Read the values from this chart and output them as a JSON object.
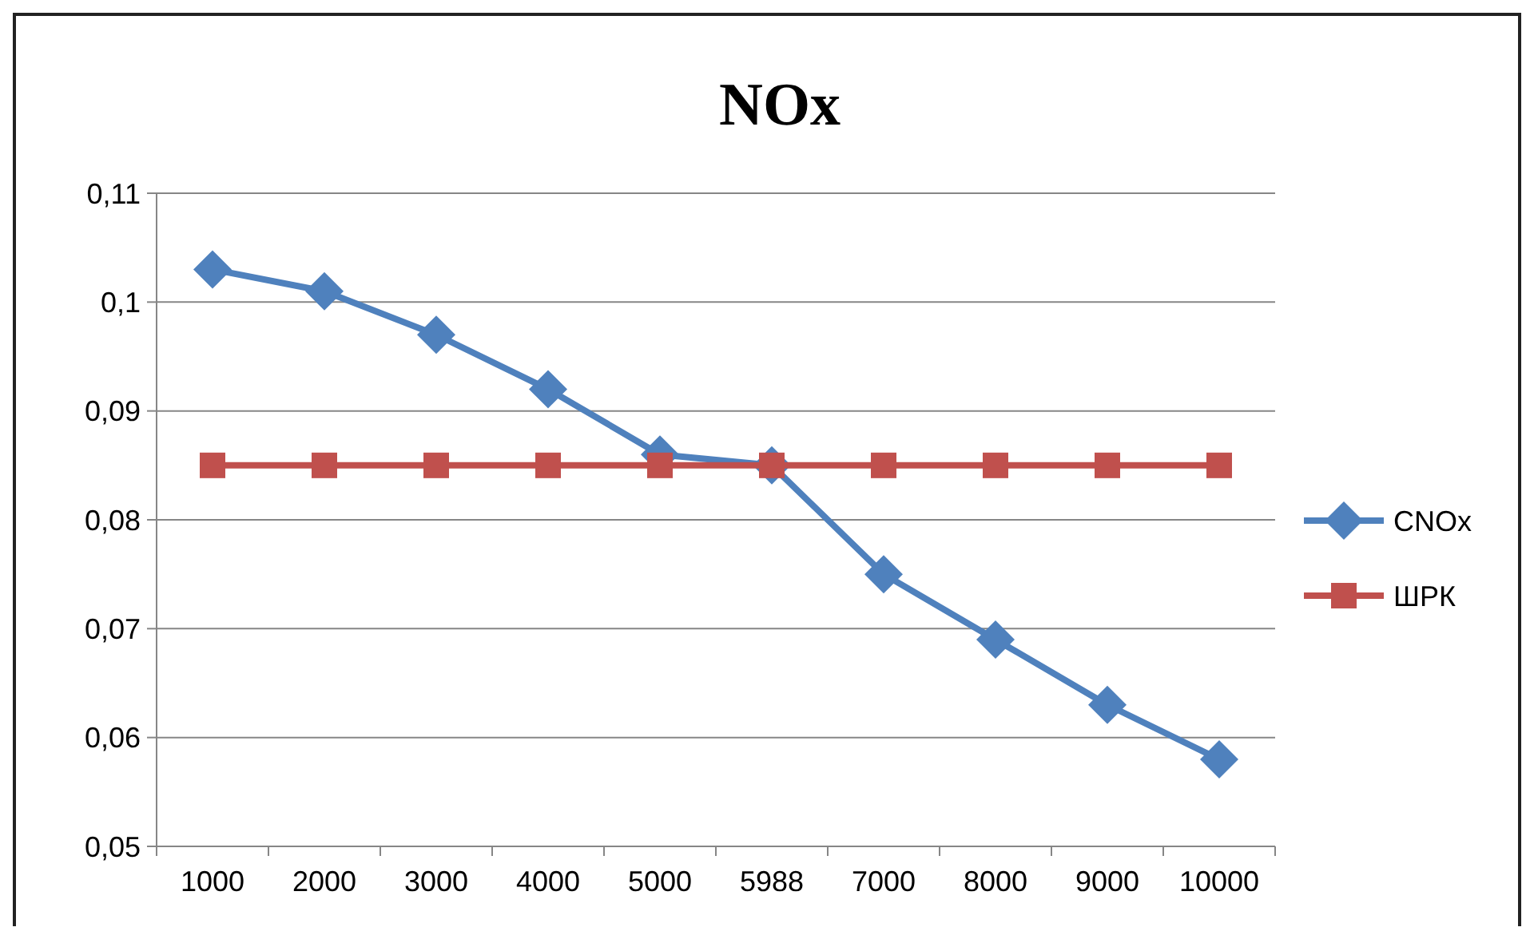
{
  "chart_data": {
    "type": "line",
    "title": "NOx",
    "categories": [
      "1000",
      "2000",
      "3000",
      "4000",
      "5000",
      "5988",
      "7000",
      "8000",
      "9000",
      "10000"
    ],
    "series": [
      {
        "name": "CNOx",
        "color": "#4f81bd",
        "marker": "diamond",
        "values": [
          0.103,
          0.101,
          0.097,
          0.092,
          0.086,
          0.085,
          0.075,
          0.069,
          0.063,
          0.058
        ]
      },
      {
        "name": "ШРК",
        "color": "#c0504d",
        "marker": "square",
        "values": [
          0.085,
          0.085,
          0.085,
          0.085,
          0.085,
          0.085,
          0.085,
          0.085,
          0.085,
          0.085
        ]
      }
    ],
    "ylim": [
      0.05,
      0.11
    ],
    "yticks": [
      {
        "value": 0.05,
        "label": "0,05"
      },
      {
        "value": 0.06,
        "label": "0,06"
      },
      {
        "value": 0.07,
        "label": "0,07"
      },
      {
        "value": 0.08,
        "label": "0,08"
      },
      {
        "value": 0.09,
        "label": "0,09"
      },
      {
        "value": 0.1,
        "label": "0,1"
      },
      {
        "value": 0.11,
        "label": "0,11"
      }
    ],
    "grid": "y",
    "legend": "right",
    "line_style": "solid"
  }
}
